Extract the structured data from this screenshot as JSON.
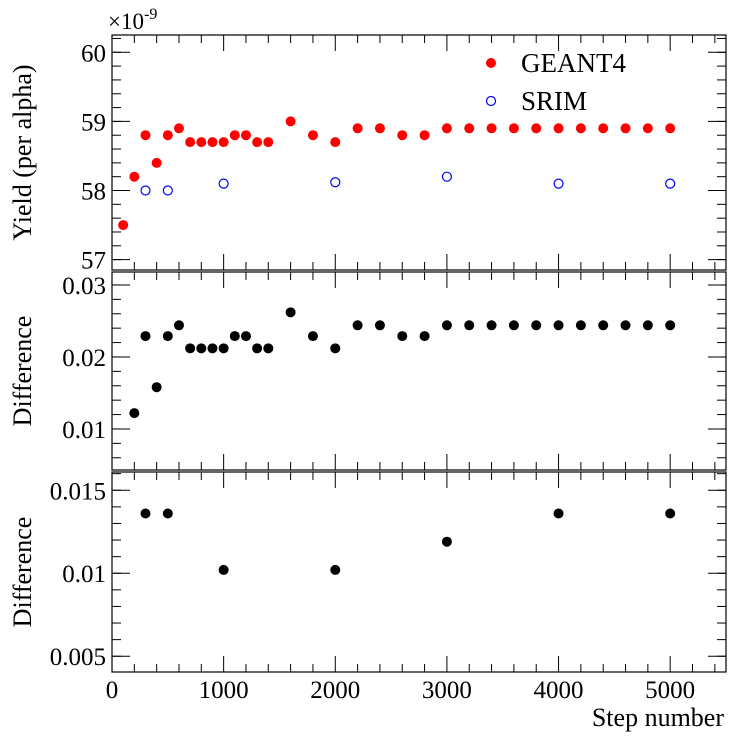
{
  "chart_data": [
    {
      "type": "scatter",
      "ylabel": "Yield (per alpha)",
      "y_multiplier": "×10",
      "y_exponent": "-9",
      "ylim": [
        56.85,
        60.25
      ],
      "xlim": [
        0,
        5500
      ],
      "y_ticks": [
        57,
        58,
        59,
        60
      ],
      "y_tick_labels": [
        "57",
        "58",
        "59",
        "60"
      ],
      "legend_position": "top-right",
      "series": [
        {
          "name": "GEANT4",
          "color": "#ff0000",
          "marker": "filled-circle",
          "x": [
            100,
            200,
            300,
            400,
            500,
            600,
            700,
            800,
            900,
            1000,
            1100,
            1200,
            1300,
            1400,
            1600,
            1800,
            2000,
            2200,
            2400,
            2600,
            2800,
            3000,
            3200,
            3400,
            3600,
            3800,
            4000,
            4200,
            4400,
            4600,
            4800,
            5000
          ],
          "y": [
            57.5,
            58.2,
            58.8,
            58.4,
            58.8,
            58.9,
            58.7,
            58.7,
            58.7,
            58.7,
            58.8,
            58.8,
            58.7,
            58.7,
            59.0,
            58.8,
            58.7,
            58.9,
            58.9,
            58.8,
            58.8,
            58.9,
            58.9,
            58.9,
            58.9,
            58.9,
            58.9,
            58.9,
            58.9,
            58.9,
            58.9,
            58.9
          ]
        },
        {
          "name": "SRIM",
          "color": "#0000ff",
          "marker": "open-circle",
          "x": [
            300,
            500,
            1000,
            2000,
            3000,
            4000,
            5000
          ],
          "y": [
            58.0,
            58.0,
            58.1,
            58.12,
            58.2,
            58.1,
            58.1
          ]
        }
      ]
    },
    {
      "type": "scatter",
      "ylabel": "Difference",
      "ylim": [
        0.0043,
        0.0318
      ],
      "xlim": [
        0,
        5500
      ],
      "y_ticks": [
        0.01,
        0.02,
        0.03
      ],
      "y_tick_labels": [
        "0.01",
        "0.02",
        "0.03"
      ],
      "series": [
        {
          "color": "#000000",
          "marker": "filled-circle",
          "x": [
            200,
            300,
            400,
            500,
            600,
            700,
            800,
            900,
            1000,
            1100,
            1200,
            1300,
            1400,
            1600,
            1800,
            2000,
            2200,
            2400,
            2600,
            2800,
            3000,
            3200,
            3400,
            3600,
            3800,
            4000,
            4200,
            4400,
            4600,
            4800,
            5000
          ],
          "y": [
            0.0122,
            0.0229,
            0.0158,
            0.0229,
            0.0244,
            0.0212,
            0.0212,
            0.0212,
            0.0212,
            0.0229,
            0.0229,
            0.0212,
            0.0212,
            0.0262,
            0.0229,
            0.0212,
            0.0244,
            0.0244,
            0.0229,
            0.0229,
            0.0244,
            0.0244,
            0.0244,
            0.0244,
            0.0244,
            0.0244,
            0.0244,
            0.0244,
            0.0244,
            0.0244,
            0.0244
          ]
        }
      ]
    },
    {
      "type": "scatter",
      "ylabel": "Difference",
      "xlabel": "Step number",
      "ylim": [
        0.00405,
        0.0161
      ],
      "xlim": [
        0,
        5500
      ],
      "y_ticks": [
        0.005,
        0.01,
        0.015
      ],
      "y_tick_labels": [
        "0.005",
        "0.01",
        "0.015"
      ],
      "x_ticks": [
        0,
        1000,
        2000,
        3000,
        4000,
        5000
      ],
      "x_tick_labels": [
        "0",
        "1000",
        "2000",
        "3000",
        "4000",
        "5000"
      ],
      "series": [
        {
          "color": "#000000",
          "marker": "filled-circle",
          "x": [
            300,
            500,
            1000,
            2000,
            3000,
            4000,
            5000
          ],
          "y": [
            0.0136,
            0.0136,
            0.0102,
            0.0102,
            0.0119,
            0.0136,
            0.0136
          ]
        }
      ]
    }
  ]
}
